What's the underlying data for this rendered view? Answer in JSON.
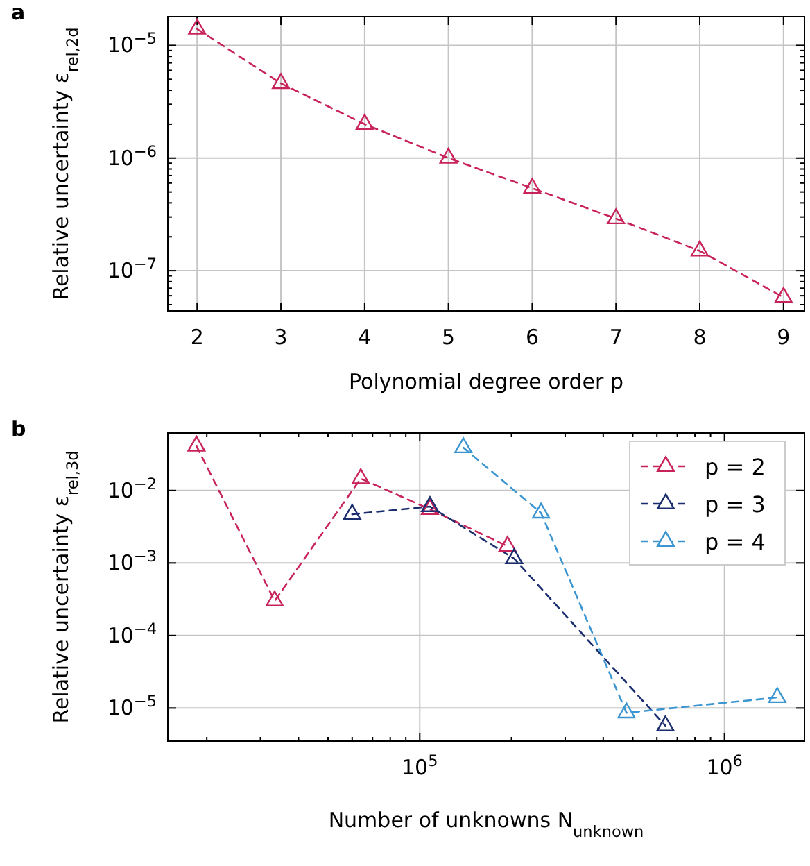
{
  "chart_data": [
    {
      "type": "line",
      "title": "a",
      "xlabel": "Polynomial degree order p",
      "ylabel": "Relative uncertainty ε$_{rel,2d}$",
      "log": "y",
      "grid": true,
      "marker": "triangle",
      "line_style": "dashed",
      "legend": false,
      "x": [
        2,
        3,
        4,
        5,
        6,
        7,
        8,
        9
      ],
      "series": [
        {
          "color": "#c8245a",
          "values": [
            1.4e-05,
            4.6e-06,
            2e-06,
            1e-06,
            5.4e-07,
            2.9e-07,
            1.5e-07,
            5.8e-08
          ]
        }
      ],
      "xlim": [
        1.65,
        9.25
      ],
      "xticks": [
        2,
        3,
        4,
        5,
        6,
        7,
        8,
        9
      ],
      "ylim": [
        4.4e-08,
        1.8e-05
      ],
      "yticks": [
        {
          "value": 5e-08,
          "label": null
        },
        {
          "value": 6e-08,
          "label": null
        },
        {
          "value": 7e-08,
          "label": null
        },
        {
          "value": 8e-08,
          "label": null
        },
        {
          "value": 9e-08,
          "label": null
        },
        {
          "value": 1e-07,
          "label": "10$^{−7}$"
        },
        {
          "value": 2e-07,
          "label": null
        },
        {
          "value": 3e-07,
          "label": null
        },
        {
          "value": 4e-07,
          "label": null
        },
        {
          "value": 5e-07,
          "label": null
        },
        {
          "value": 6e-07,
          "label": null
        },
        {
          "value": 7e-07,
          "label": null
        },
        {
          "value": 8e-07,
          "label": null
        },
        {
          "value": 9e-07,
          "label": null
        },
        {
          "value": 1e-06,
          "label": "10$^{−6}$"
        },
        {
          "value": 2e-06,
          "label": null
        },
        {
          "value": 3e-06,
          "label": null
        },
        {
          "value": 4e-06,
          "label": null
        },
        {
          "value": 5e-06,
          "label": null
        },
        {
          "value": 6e-06,
          "label": null
        },
        {
          "value": 7e-06,
          "label": null
        },
        {
          "value": 8e-06,
          "label": null
        },
        {
          "value": 9e-06,
          "label": null
        },
        {
          "value": 1e-05,
          "label": "10$^{−5}$"
        }
      ]
    },
    {
      "type": "line",
      "title": "b",
      "xlabel": "Number of unknowns N$_{unknown}$",
      "ylabel": "Relative uncertainty ε$_{rel,3d}$",
      "log": "xy",
      "grid": true,
      "marker": "triangle",
      "line_style": "dashed",
      "legend": "top right",
      "series": [
        {
          "name": "p = 2",
          "color": "#c8245a",
          "x": [
            18500.0,
            33400.0,
            64000.0,
            108000.0,
            194000.0
          ],
          "values": [
            0.041,
            0.0003,
            0.0146,
            0.0055,
            0.0017
          ]
        },
        {
          "name": "p = 3",
          "color": "#1a2d6e",
          "x": [
            60000.0,
            108000.0,
            204000.0,
            640000.0
          ],
          "values": [
            0.0047,
            0.006,
            0.00115,
            5.7e-06
          ]
        },
        {
          "name": "p = 4",
          "color": "#3a95d0",
          "x": [
            139000.0,
            250000.0,
            477000.0,
            1490000.0
          ],
          "values": [
            0.039,
            0.0049,
            8.6e-06,
            1.4e-05
          ]
        }
      ],
      "xlim": [
        14900.0,
        1830000.0
      ],
      "xticks": [
        {
          "value": 20000.0,
          "label": null
        },
        {
          "value": 30000.0,
          "label": null
        },
        {
          "value": 40000.0,
          "label": null
        },
        {
          "value": 50000.0,
          "label": null
        },
        {
          "value": 60000.0,
          "label": null
        },
        {
          "value": 70000.0,
          "label": null
        },
        {
          "value": 80000.0,
          "label": null
        },
        {
          "value": 90000.0,
          "label": null
        },
        {
          "value": 100000.0,
          "label": "10$^{5}$"
        },
        {
          "value": 200000.0,
          "label": null
        },
        {
          "value": 300000.0,
          "label": null
        },
        {
          "value": 400000.0,
          "label": null
        },
        {
          "value": 500000.0,
          "label": null
        },
        {
          "value": 600000.0,
          "label": null
        },
        {
          "value": 700000.0,
          "label": null
        },
        {
          "value": 800000.0,
          "label": null
        },
        {
          "value": 900000.0,
          "label": null
        },
        {
          "value": 1000000.0,
          "label": "10$^{6}$"
        }
      ],
      "ylim": [
        3.5e-06,
        0.062
      ],
      "yticks": [
        {
          "value": 1e-05,
          "label": "10$^{−5}$"
        },
        {
          "value": 0.0001,
          "label": "10$^{−4}$"
        },
        {
          "value": 0.001,
          "label": "10$^{−3}$"
        },
        {
          "value": 0.01,
          "label": "10$^{−2}$"
        }
      ]
    }
  ]
}
